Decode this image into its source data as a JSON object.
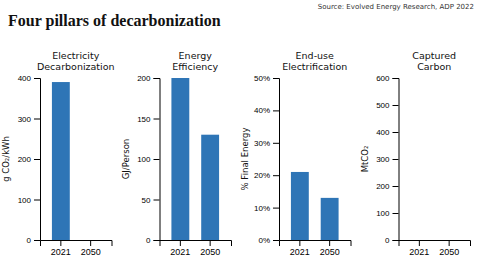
{
  "title": "Four pillars of decarbonization",
  "annotations": [
    "Source: Evolved Energy Research, ADP 2022"
  ],
  "chart_data": [
    {
      "type": "bar",
      "title": "Electricity\nDecarbonization",
      "ylabel": "g CO₂/kWh",
      "categories": [
        "2021",
        "2050"
      ],
      "values": [
        390,
        0
      ],
      "color": "#2E75B6",
      "ylim": [
        0,
        400
      ],
      "yticks": [
        0,
        100,
        200,
        300,
        400
      ],
      "grid": false
    },
    {
      "type": "bar",
      "title": "Energy\nEfficiency",
      "ylabel": "GJ/Person",
      "categories": [
        "2021",
        "2050"
      ],
      "values": [
        200,
        130
      ],
      "color": "#2E75B6",
      "ylim": [
        0,
        200
      ],
      "yticks": [
        0,
        50,
        100,
        150,
        200
      ],
      "grid": false
    },
    {
      "type": "bar",
      "title": "End-use\nElectrification",
      "ylabel": "% Final Energy",
      "categories": [
        "2021",
        "2050"
      ],
      "values": [
        21,
        13
      ],
      "color": "#2E75B6",
      "ylim": [
        0,
        50
      ],
      "yticks": [
        {
          "value": 0,
          "label": "0%"
        },
        {
          "value": 10,
          "label": "10%"
        },
        {
          "value": 20,
          "label": "20%"
        },
        {
          "value": 30,
          "label": "30%"
        },
        {
          "value": 40,
          "label": "40%"
        },
        {
          "value": 50,
          "label": "50%"
        }
      ],
      "grid": false
    },
    {
      "type": "bar",
      "title": "Captured\nCarbon",
      "ylabel": "MtCO₂",
      "categories": [
        "2021",
        "2050"
      ],
      "values": [
        0,
        0
      ],
      "color": "#2E75B6",
      "ylim": [
        0,
        600
      ],
      "yticks": [
        0,
        100,
        200,
        300,
        400,
        500,
        600
      ],
      "grid": false
    }
  ]
}
